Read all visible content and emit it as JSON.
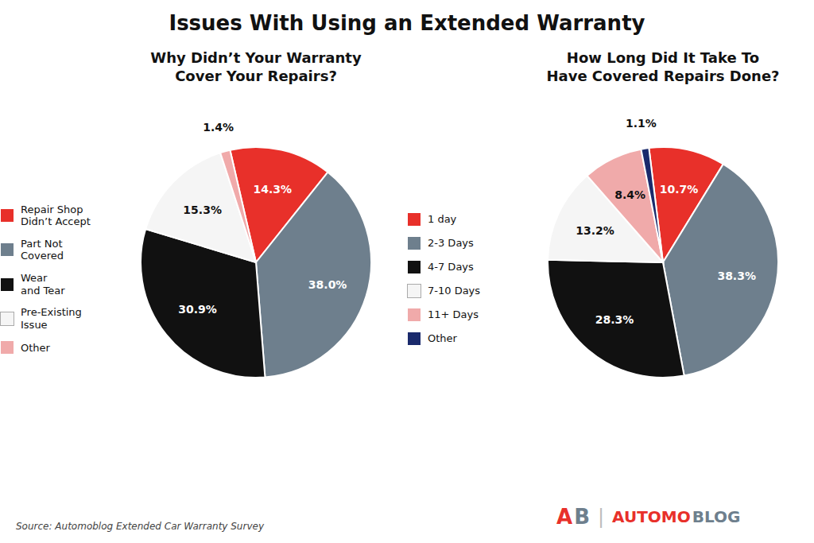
{
  "title": "Issues With Using an Extended Warranty",
  "annotations": [
    {
      "text": "Source: Automoblog Extended Car Warranty Survey",
      "color": "#444444"
    },
    {
      "text": "A",
      "color": "#e8302a"
    },
    {
      "text": "B",
      "color": "#6e7f8d"
    },
    {
      "text": "|",
      "color": "#bbbbbb"
    },
    {
      "text": "AUTOMO",
      "color": "#e8302a"
    },
    {
      "text": "BLOG",
      "color": "#6e7f8d"
    }
  ],
  "chart_data": [
    {
      "type": "pie",
      "title": "Why Didn’t Your Warranty\nCover Your Repairs?",
      "categories": [
        "Repair Shop\nDidn’t Accept",
        "Part Not\nCovered",
        "Wear\nand Tear",
        "Pre-Existing\nIssue",
        "Other"
      ],
      "values": [
        14.3,
        38.0,
        30.9,
        15.3,
        1.4
      ],
      "value_labels": [
        "14.3%",
        "38.0%",
        "30.9%",
        "15.3%",
        "1.4%"
      ],
      "colors": [
        "#e8302a",
        "#6e7f8d",
        "#111111",
        "#f5f5f5",
        "#f0aaaa"
      ],
      "data_labels": true,
      "legend": "left"
    },
    {
      "type": "pie",
      "title": "How Long Did It Take To\nHave Covered Repairs Done?",
      "categories": [
        "1 day",
        "2-3 Days",
        "4-7 Days",
        "7-10 Days",
        "11+ Days",
        "Other"
      ],
      "values": [
        10.7,
        38.3,
        28.3,
        13.2,
        8.4,
        1.1
      ],
      "value_labels": [
        "10.7%",
        "38.3%",
        "28.3%",
        "13.2%",
        "8.4%",
        "1.1%"
      ],
      "colors": [
        "#e8302a",
        "#6e7f8d",
        "#111111",
        "#f5f5f5",
        "#f0aaaa",
        "#1a2a6c"
      ],
      "data_labels": true,
      "legend": "left"
    }
  ]
}
